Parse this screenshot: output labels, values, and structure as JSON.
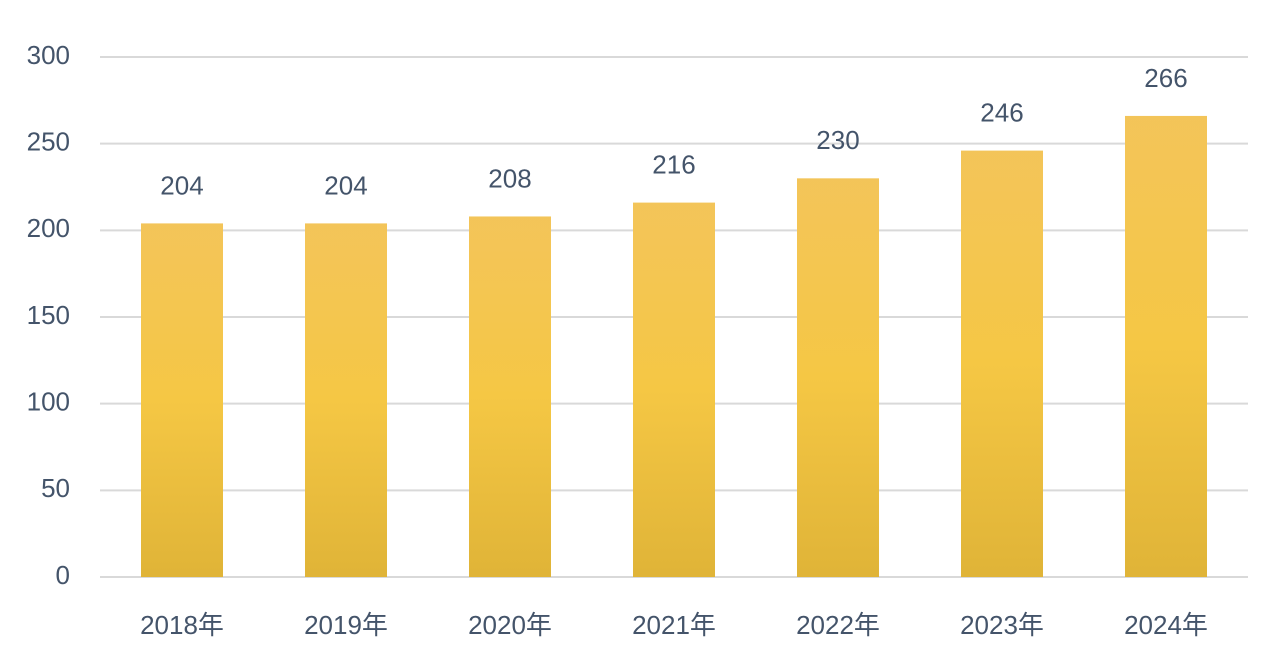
{
  "chart_data": {
    "type": "bar",
    "categories": [
      "2018年",
      "2019年",
      "2020年",
      "2021年",
      "2022年",
      "2023年",
      "2024年"
    ],
    "values": [
      204,
      204,
      208,
      216,
      230,
      246,
      266
    ],
    "color": "#f5c744",
    "ylim": [
      0,
      300
    ],
    "yticks": [
      0,
      50,
      100,
      150,
      200,
      250,
      300
    ],
    "grid": true
  }
}
